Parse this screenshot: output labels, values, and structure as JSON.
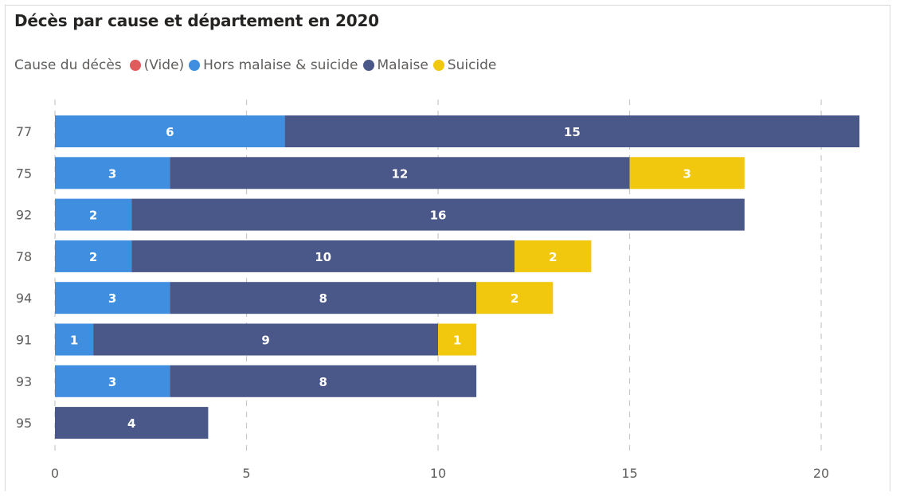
{
  "colors": {
    "vide": "#e05c5c",
    "hors": "#3f8ee0",
    "malaise": "#4a5789",
    "suicide": "#f2c80f"
  },
  "chart_data": {
    "type": "bar",
    "orientation": "horizontal",
    "stacked": true,
    "title": "Décès par cause et département en 2020",
    "legend_title": "Cause du décès",
    "legend_placement": "top-left",
    "categories": [
      "77",
      "75",
      "92",
      "78",
      "94",
      "91",
      "93",
      "95"
    ],
    "series": [
      {
        "name": "(Vide)",
        "color": "#e05c5c",
        "values": [
          0,
          0,
          0,
          0,
          0,
          0,
          0,
          0
        ]
      },
      {
        "name": "Hors malaise & suicide",
        "color": "#3f8ee0",
        "values": [
          6,
          3,
          2,
          2,
          3,
          1,
          3,
          0
        ]
      },
      {
        "name": "Malaise",
        "color": "#4a5789",
        "values": [
          15,
          12,
          16,
          10,
          8,
          9,
          8,
          4
        ]
      },
      {
        "name": "Suicide",
        "color": "#f2c80f",
        "values": [
          0,
          3,
          0,
          2,
          2,
          1,
          0,
          0
        ]
      }
    ],
    "xlim": [
      0,
      22
    ],
    "xticks": [
      0,
      5,
      10,
      15,
      20
    ],
    "grid": true,
    "grid_style": "dashed-vertical",
    "data_labels": true
  }
}
